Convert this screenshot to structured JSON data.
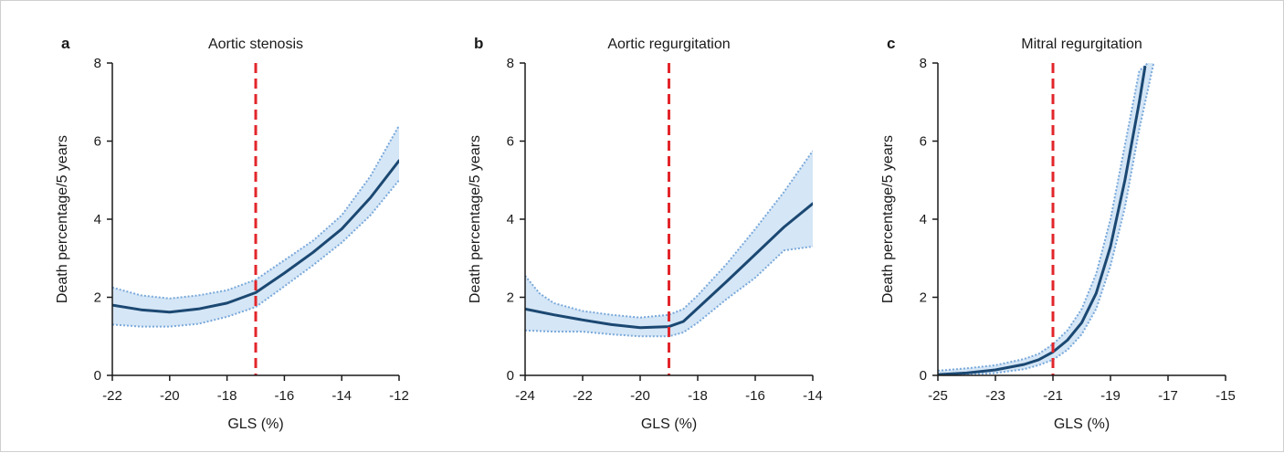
{
  "colors": {
    "band_fill": "#d5e6f6",
    "band_edge": "#7aa9da",
    "main_line": "#1b4872",
    "threshold": "#e2262b",
    "axis": "#1a1a1a"
  },
  "chart_data": [
    {
      "type": "line",
      "panel": "a",
      "title": "Aortic stenosis",
      "xlabel": "GLS (%)",
      "ylabel": "Death percentage/5 years",
      "xlim": [
        -22,
        -12
      ],
      "ylim": [
        0,
        8
      ],
      "xticks": [
        -22,
        -20,
        -18,
        -16,
        -14,
        -12
      ],
      "yticks": [
        0,
        2,
        4,
        6,
        8
      ],
      "threshold_x": -17,
      "grid": false,
      "legend": "none",
      "series": [
        {
          "role": "estimate",
          "x": [
            -22,
            -21,
            -20,
            -19,
            -18,
            -17,
            -16,
            -15,
            -14,
            -13,
            -12
          ],
          "y": [
            1.8,
            1.68,
            1.62,
            1.7,
            1.85,
            2.12,
            2.62,
            3.15,
            3.75,
            4.55,
            5.5
          ]
        },
        {
          "role": "upper_ci",
          "x": [
            -22,
            -21,
            -20,
            -19,
            -18,
            -17,
            -16,
            -15,
            -14,
            -13,
            -12
          ],
          "y": [
            2.25,
            2.05,
            1.97,
            2.05,
            2.18,
            2.45,
            2.95,
            3.45,
            4.1,
            5.1,
            6.4
          ]
        },
        {
          "role": "lower_ci",
          "x": [
            -22,
            -21,
            -20,
            -19,
            -18,
            -17,
            -16,
            -15,
            -14,
            -13,
            -12
          ],
          "y": [
            1.3,
            1.25,
            1.25,
            1.32,
            1.5,
            1.75,
            2.28,
            2.82,
            3.4,
            4.1,
            5.0
          ]
        }
      ]
    },
    {
      "type": "line",
      "panel": "b",
      "title": "Aortic regurgitation",
      "xlabel": "GLS (%)",
      "ylabel": "Death percentage/5 years",
      "xlim": [
        -24,
        -14
      ],
      "ylim": [
        0,
        8
      ],
      "xticks": [
        -24,
        -22,
        -20,
        -18,
        -16,
        -14
      ],
      "yticks": [
        0,
        2,
        4,
        6,
        8
      ],
      "threshold_x": -19,
      "grid": false,
      "legend": "none",
      "series": [
        {
          "role": "estimate",
          "x": [
            -24,
            -23,
            -22,
            -21,
            -20,
            -19,
            -18.5,
            -18,
            -17,
            -16,
            -15,
            -14
          ],
          "y": [
            1.7,
            1.55,
            1.42,
            1.3,
            1.22,
            1.25,
            1.38,
            1.72,
            2.4,
            3.1,
            3.8,
            4.4
          ]
        },
        {
          "role": "upper_ci",
          "x": [
            -24,
            -23.5,
            -23,
            -22,
            -21,
            -20,
            -19,
            -18.5,
            -18,
            -17,
            -16,
            -15,
            -14
          ],
          "y": [
            2.55,
            2.1,
            1.85,
            1.65,
            1.55,
            1.48,
            1.55,
            1.7,
            2.05,
            2.85,
            3.75,
            4.7,
            5.75
          ]
        },
        {
          "role": "lower_ci",
          "x": [
            -24,
            -23,
            -22,
            -21,
            -20,
            -19,
            -18.5,
            -18,
            -17,
            -16,
            -15,
            -14
          ],
          "y": [
            1.15,
            1.12,
            1.12,
            1.05,
            1.0,
            1.0,
            1.1,
            1.35,
            1.95,
            2.5,
            3.2,
            3.3
          ]
        }
      ]
    },
    {
      "type": "line",
      "panel": "c",
      "title": "Mitral regurgitation",
      "xlabel": "GLS (%)",
      "ylabel": "Death percentage/5 years",
      "xlim": [
        -25,
        -15
      ],
      "ylim": [
        0,
        8
      ],
      "xticks": [
        -25,
        -23,
        -21,
        -19,
        -17,
        -15
      ],
      "yticks": [
        0,
        2,
        4,
        6,
        8
      ],
      "threshold_x": -21,
      "grid": false,
      "legend": "none",
      "series": [
        {
          "role": "estimate",
          "x": [
            -25,
            -24,
            -23,
            -22,
            -21.5,
            -21,
            -20.5,
            -20,
            -19.5,
            -19,
            -18.5,
            -18,
            -17.8
          ],
          "y": [
            0.02,
            0.06,
            0.14,
            0.28,
            0.4,
            0.6,
            0.9,
            1.35,
            2.1,
            3.3,
            5.0,
            7.0,
            7.9
          ]
        },
        {
          "role": "upper_ci",
          "x": [
            -25,
            -24,
            -23,
            -22,
            -21.5,
            -21,
            -20.5,
            -20,
            -19.5,
            -19,
            -18.5,
            -18,
            -17.7
          ],
          "y": [
            0.12,
            0.18,
            0.26,
            0.42,
            0.55,
            0.8,
            1.15,
            1.7,
            2.6,
            4.0,
            5.9,
            7.8,
            8.0
          ]
        },
        {
          "role": "lower_ci",
          "x": [
            -25,
            -24,
            -23,
            -22,
            -21.5,
            -21,
            -20.5,
            -20,
            -19.5,
            -19,
            -18.5,
            -18,
            -17.5
          ],
          "y": [
            0.0,
            0.02,
            0.06,
            0.16,
            0.26,
            0.4,
            0.65,
            1.05,
            1.7,
            2.8,
            4.3,
            6.3,
            8.0
          ]
        }
      ]
    }
  ]
}
